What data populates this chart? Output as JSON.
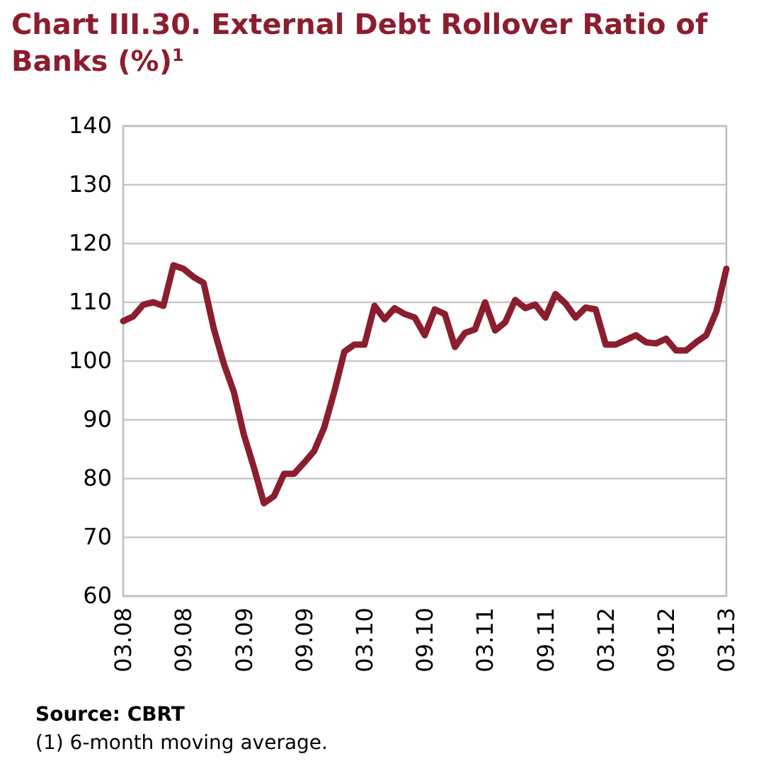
{
  "chart_data": {
    "type": "line",
    "title": "Chart III.30. External Debt Rollover Ratio of Banks (%)$^{1}$",
    "categories": [
      "03.08",
      null,
      null,
      null,
      null,
      null,
      "09.08",
      null,
      null,
      null,
      null,
      null,
      "03.09",
      null,
      null,
      null,
      null,
      null,
      "09.09",
      null,
      null,
      null,
      null,
      null,
      "03.10",
      null,
      null,
      null,
      null,
      null,
      "09.10",
      null,
      null,
      null,
      null,
      null,
      "03.11",
      null,
      null,
      null,
      null,
      null,
      "09.11",
      null,
      null,
      null,
      null,
      null,
      "03.12",
      null,
      null,
      null,
      null,
      null,
      "09.12",
      null,
      null,
      null,
      null,
      null,
      "03.13"
    ],
    "series": [
      {
        "color": "#8b1e2e",
        "values": [
          106.8,
          107.6,
          109.6,
          110,
          109.4,
          116.3,
          115.7,
          114.3,
          113.3,
          105.6,
          99.6,
          94.8,
          87.5,
          81.9,
          75.8,
          77,
          80.8,
          80.8,
          82.7,
          84.7,
          88.7,
          94.8,
          101.6,
          102.8,
          102.8,
          109.4,
          107.1,
          109,
          108,
          107.4,
          104.4,
          108.8,
          108,
          102.4,
          104.8,
          105.4,
          110,
          105.2,
          106.6,
          110.4,
          109,
          109.6,
          107.4,
          111.4,
          109.8,
          107.4,
          109.1,
          108.8,
          102.8,
          102.8,
          103.6,
          104.4,
          103.2,
          103,
          103.8,
          101.8,
          101.8,
          103.2,
          104.4,
          108.4,
          115.7
        ]
      }
    ],
    "ylim": [
      60,
      140
    ],
    "yticks": [
      60,
      70,
      80,
      90,
      100,
      110,
      120,
      130,
      140
    ],
    "grid": "y",
    "marker": "none",
    "line_style": "solid",
    "annotations": [
      "Source: CBRT",
      "(1) 6-month moving average."
    ]
  }
}
